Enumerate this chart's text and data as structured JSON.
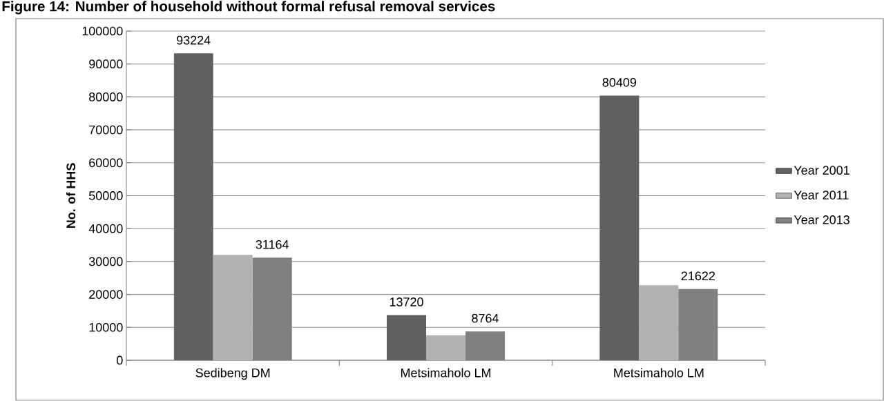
{
  "chart_data": {
    "type": "bar",
    "title": "Figure 14: Number of household without formal refusal removal services",
    "ylabel": "No. of HHS",
    "categories": [
      "Sedibeng DM",
      "Metsimaholo LM",
      "Metsimaholo LM"
    ],
    "series": [
      {
        "name": "Year 2001",
        "color": "#606060",
        "values": [
          93224,
          13720,
          80409
        ],
        "value_labels": [
          "93224",
          "13720",
          "80409"
        ]
      },
      {
        "name": "Year 2011",
        "color": "#b2b2b2",
        "values": [
          32000,
          7600,
          22800
        ],
        "value_labels": [
          null,
          null,
          null
        ]
      },
      {
        "name": "Year 2013",
        "color": "#808080",
        "values": [
          31164,
          8764,
          21622
        ],
        "value_labels": [
          "31164",
          "8764",
          "21622"
        ]
      }
    ],
    "ylim": [
      0,
      100000
    ],
    "yticks": [
      0,
      10000,
      20000,
      30000,
      40000,
      50000,
      60000,
      70000,
      80000,
      90000,
      100000
    ],
    "grid": "y",
    "legend": "right"
  }
}
